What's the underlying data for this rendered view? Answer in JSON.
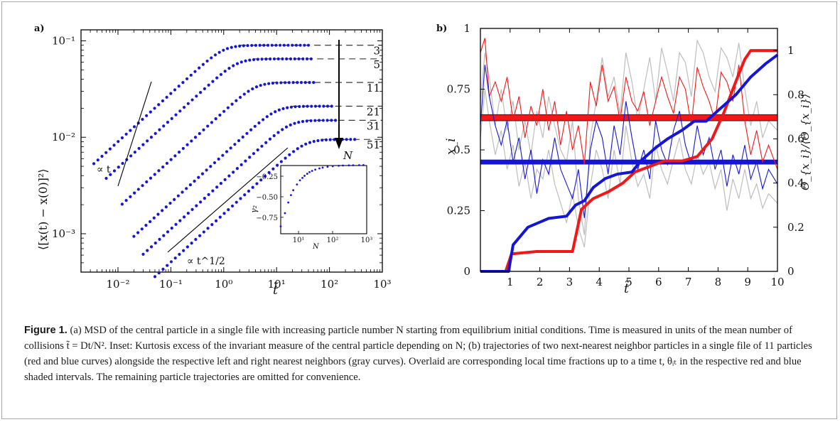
{
  "caption": {
    "figure_label": "Figure 1.",
    "text": " (a) MSD of the central particle in a single file with increasing particle number N starting from equilibrium initial conditions. Time is measured in units of the mean number of collisions t̃ = Dt/N². Inset: Kurtosis excess of the invariant measure of the central particle depending on N; (b) trajectories of two next-nearest neighbor particles in a single file of 11 particles (red and blue curves) alongside the respective left and right nearest neighbors (gray curves). Overlaid are corresponding local time fractions up to a time t, θᵢₜ in the respective red and blue shaded intervals. The remaining particle trajectories are omitted for convenience."
  },
  "colors": {
    "blue": "#1515d8",
    "red": "#f01818",
    "gray": "#bdbdbd",
    "black": "#000000"
  },
  "chart_data": [
    {
      "panel_label": "a)",
      "type": "scatter",
      "xlabel": "t̃",
      "ylabel": "⟨[x(t) − x(0)]²⟩",
      "xscale": "log",
      "yscale": "log",
      "xlim": [
        0.002,
        1000
      ],
      "ylim": [
        0.0004,
        0.13
      ],
      "xticks": [
        0.01,
        0.1,
        1,
        10,
        100,
        1000
      ],
      "xtick_labels": [
        "10⁻²",
        "10⁻¹",
        "10⁰",
        "10¹",
        "10²",
        "10³"
      ],
      "yticks": [
        0.001,
        0.01,
        0.1
      ],
      "ytick_labels": [
        "10⁻³",
        "10⁻²",
        "10⁻¹"
      ],
      "series": [
        {
          "name": "3",
          "t_start": 0.0035,
          "t_cross": 1.0,
          "t_end": 40,
          "plateau": 0.09
        },
        {
          "name": "5",
          "t_start": 0.006,
          "t_cross": 1.8,
          "t_end": 45,
          "plateau": 0.065
        },
        {
          "name": "11",
          "t_start": 0.012,
          "t_cross": 4.0,
          "t_end": 50,
          "plateau": 0.037
        },
        {
          "name": "21",
          "t_start": 0.02,
          "t_cross": 10.0,
          "t_end": 110,
          "plateau": 0.021
        },
        {
          "name": "31",
          "t_start": 0.03,
          "t_cross": 18.0,
          "t_end": 130,
          "plateau": 0.015
        },
        {
          "name": "51",
          "t_start": 0.05,
          "t_cross": 35.0,
          "t_end": 300,
          "plateau": 0.0095
        }
      ],
      "arrow_label": "N",
      "guide_labels": [
        "∝ t",
        "∝ t^1/2"
      ],
      "inset": {
        "xlabel": "N",
        "ylabel": "γ₂",
        "xscale": "log",
        "xlim": [
          3,
          1000
        ],
        "ylim": [
          -0.95,
          -0.12
        ],
        "xticks": [
          10,
          100,
          1000
        ],
        "xtick_labels": [
          "10¹",
          "10²",
          "10³"
        ],
        "yticks": [
          -0.25,
          -0.5,
          -0.75
        ],
        "ytick_labels": [
          "−0.25",
          "−0.50",
          "−0.75"
        ],
        "x": [
          3,
          4,
          5,
          6,
          7,
          9,
          11,
          13,
          15,
          18,
          21,
          25,
          31,
          41,
          51,
          71,
          101,
          151,
          201,
          301,
          401,
          601,
          801
        ],
        "values": [
          -0.86,
          -0.7,
          -0.57,
          -0.48,
          -0.42,
          -0.35,
          -0.3,
          -0.27,
          -0.245,
          -0.22,
          -0.2,
          -0.185,
          -0.17,
          -0.155,
          -0.145,
          -0.135,
          -0.128,
          -0.122,
          -0.12,
          -0.118,
          -0.117,
          -0.116,
          -0.115
        ]
      }
    },
    {
      "panel_label": "b)",
      "type": "line",
      "xlabel": "t̃",
      "ylabel": "x_i",
      "y2label": "Θ_{x_i}/⟨Θ_{x_i}⟩",
      "xlim": [
        0,
        10
      ],
      "ylim": [
        0,
        1
      ],
      "y2lim": [
        0,
        1.1
      ],
      "xticks": [
        1,
        2,
        3,
        4,
        5,
        6,
        7,
        8,
        9,
        10
      ],
      "xtick_labels": [
        "1",
        "2",
        "3",
        "4",
        "5",
        "6",
        "7",
        "8",
        "9",
        "10"
      ],
      "yticks": [
        0,
        0.25,
        0.5,
        0.75,
        1
      ],
      "ytick_labels": [
        "0",
        "0.25",
        "0.5",
        "0.75",
        "1"
      ],
      "y2ticks": [
        0,
        0.2,
        0.4,
        0.6,
        0.8,
        1.0
      ],
      "y2tick_labels": [
        "0",
        "0.2",
        "0.4",
        "0.6",
        "0.8",
        "1"
      ],
      "red_band": [
        0.62,
        0.645
      ],
      "blue_band": [
        0.44,
        0.46
      ],
      "red_traj": {
        "x": [
          0,
          0.15,
          0.3,
          0.5,
          0.7,
          0.9,
          1.1,
          1.3,
          1.5,
          1.7,
          1.9,
          2.1,
          2.3,
          2.5,
          2.7,
          2.9,
          3.1,
          3.3,
          3.5,
          3.7,
          3.9,
          4.1,
          4.3,
          4.5,
          4.7,
          4.9,
          5.1,
          5.3,
          5.5,
          5.7,
          5.9,
          6.1,
          6.3,
          6.5,
          6.7,
          6.9,
          7.1,
          7.3,
          7.5,
          7.7,
          7.9,
          8.1,
          8.3,
          8.5,
          8.7,
          8.9,
          9.1,
          9.3,
          9.5,
          9.7,
          10
        ],
        "values": [
          0.9,
          0.96,
          0.72,
          0.78,
          0.7,
          0.8,
          0.62,
          0.72,
          0.55,
          0.68,
          0.6,
          0.75,
          0.58,
          0.7,
          0.52,
          0.66,
          0.5,
          0.6,
          0.44,
          0.78,
          0.68,
          0.85,
          0.7,
          0.76,
          0.62,
          0.8,
          0.7,
          0.66,
          0.74,
          0.6,
          0.7,
          0.8,
          0.72,
          0.65,
          0.8,
          0.75,
          0.6,
          0.84,
          0.76,
          0.7,
          0.62,
          0.82,
          0.78,
          0.7,
          0.85,
          0.62,
          0.48,
          0.58,
          0.45,
          0.52,
          0.42
        ]
      },
      "blue_traj": {
        "x": [
          0,
          0.15,
          0.3,
          0.5,
          0.7,
          0.9,
          1.1,
          1.3,
          1.5,
          1.7,
          1.9,
          2.1,
          2.3,
          2.5,
          2.7,
          2.9,
          3.1,
          3.3,
          3.5,
          3.7,
          3.9,
          4.1,
          4.3,
          4.5,
          4.7,
          4.9,
          5.1,
          5.3,
          5.5,
          5.7,
          5.9,
          6.1,
          6.3,
          6.5,
          6.7,
          6.9,
          7.1,
          7.3,
          7.5,
          7.7,
          7.9,
          8.1,
          8.3,
          8.5,
          8.7,
          8.9,
          9.1,
          9.3,
          9.5,
          9.7,
          10
        ],
        "values": [
          0.6,
          0.85,
          0.72,
          0.6,
          0.52,
          0.62,
          0.45,
          0.55,
          0.38,
          0.5,
          0.32,
          0.46,
          0.4,
          0.55,
          0.42,
          0.36,
          0.3,
          0.42,
          0.22,
          0.5,
          0.62,
          0.55,
          0.4,
          0.6,
          0.48,
          0.7,
          0.55,
          0.42,
          0.5,
          0.38,
          0.62,
          0.5,
          0.44,
          0.58,
          0.66,
          0.52,
          0.44,
          0.6,
          0.48,
          0.55,
          0.42,
          0.5,
          0.35,
          0.48,
          0.4,
          0.52,
          0.38,
          0.45,
          0.34,
          0.42,
          0.36
        ]
      },
      "gray_trajs": [
        {
          "values": [
            0.7,
            0.9,
            0.8,
            0.6,
            0.75,
            0.58,
            0.7,
            0.5,
            0.62,
            0.48,
            0.66,
            0.55,
            0.72,
            0.6,
            0.5,
            0.45,
            0.62,
            0.3,
            0.15,
            0.55,
            0.7,
            0.88,
            0.72,
            0.8,
            0.65,
            0.9,
            0.78,
            0.62,
            0.75,
            0.88,
            0.7,
            0.92,
            0.82,
            0.7,
            0.9,
            0.86,
            0.72,
            0.95,
            0.9,
            0.8,
            0.74,
            0.92,
            0.88,
            0.8,
            0.94,
            0.75,
            0.6,
            0.7,
            0.55,
            0.62,
            0.58
          ]
        },
        {
          "values": [
            0.55,
            0.75,
            0.62,
            0.48,
            0.58,
            0.42,
            0.52,
            0.35,
            0.45,
            0.3,
            0.42,
            0.38,
            0.5,
            0.36,
            0.28,
            0.2,
            0.32,
            0.18,
            0.1,
            0.35,
            0.5,
            0.42,
            0.3,
            0.5,
            0.36,
            0.6,
            0.45,
            0.35,
            0.4,
            0.3,
            0.52,
            0.42,
            0.36,
            0.46,
            0.55,
            0.42,
            0.36,
            0.48,
            0.4,
            0.45,
            0.34,
            0.42,
            0.25,
            0.38,
            0.3,
            0.42,
            0.3,
            0.36,
            0.26,
            0.32,
            0.28
          ]
        }
      ],
      "red_time": {
        "x": [
          0,
          0.85,
          1.05,
          1.1,
          1.9,
          2.1,
          3.1,
          3.4,
          3.8,
          4.3,
          4.8,
          5.2,
          5.8,
          6.2,
          6.8,
          7.3,
          7.8,
          8.2,
          8.6,
          8.9,
          9.1,
          10
        ],
        "values": [
          0,
          0,
          0.08,
          0.08,
          0.09,
          0.09,
          0.09,
          0.28,
          0.33,
          0.36,
          0.4,
          0.45,
          0.48,
          0.5,
          0.5,
          0.52,
          0.6,
          0.72,
          0.86,
          0.96,
          1.0,
          1.0
        ]
      },
      "blue_time": {
        "x": [
          0,
          0.95,
          1.1,
          1.6,
          2.3,
          2.9,
          3.2,
          3.5,
          3.8,
          4.2,
          4.6,
          5.1,
          5.4,
          5.9,
          6.3,
          6.8,
          7.2,
          7.6,
          8.1,
          8.6,
          9.1,
          9.6,
          10
        ],
        "values": [
          0,
          0,
          0.12,
          0.2,
          0.24,
          0.25,
          0.3,
          0.32,
          0.38,
          0.42,
          0.44,
          0.45,
          0.5,
          0.56,
          0.6,
          0.64,
          0.68,
          0.68,
          0.74,
          0.8,
          0.88,
          0.94,
          0.98
        ]
      }
    }
  ]
}
